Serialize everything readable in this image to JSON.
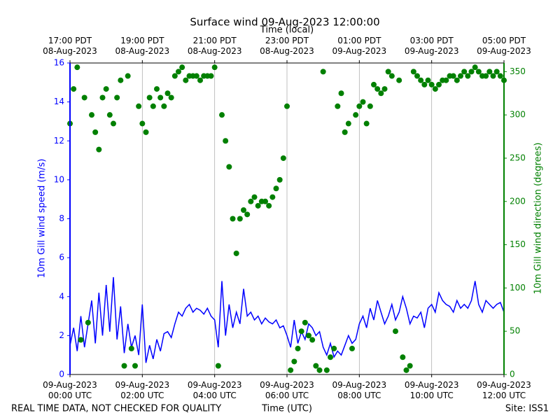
{
  "chart_data": {
    "type": "line",
    "title": "Surface wind 09-Aug-2023 12:00:00",
    "x_label": "Time (UTC)",
    "x2_label": "Time (local)",
    "y_label": "10m Gill wind speed (m/s)",
    "y2_label": "10m Gill wind direction (degrees)",
    "footer_left": "REAL TIME DATA, NOT CHECKED FOR QUALITY",
    "footer_right": "Site: ISS1",
    "x": [
      0,
      0.1,
      0.2,
      0.3,
      0.4,
      0.5,
      0.6,
      0.7,
      0.8,
      0.9,
      1,
      1.1,
      1.2,
      1.3,
      1.4,
      1.5,
      1.6,
      1.7,
      1.8,
      1.9,
      2,
      2.1,
      2.2,
      2.3,
      2.4,
      2.5,
      2.6,
      2.7,
      2.8,
      2.9,
      3,
      3.1,
      3.2,
      3.3,
      3.4,
      3.5,
      3.6,
      3.7,
      3.8,
      3.9,
      4,
      4.1,
      4.2,
      4.3,
      4.4,
      4.5,
      4.6,
      4.7,
      4.8,
      4.9,
      5,
      5.1,
      5.2,
      5.3,
      5.4,
      5.5,
      5.6,
      5.7,
      5.8,
      5.9,
      6,
      6.1,
      6.2,
      6.3,
      6.4,
      6.5,
      6.6,
      6.7,
      6.8,
      6.9,
      7,
      7.1,
      7.2,
      7.3,
      7.4,
      7.5,
      7.6,
      7.7,
      7.8,
      7.9,
      8,
      8.1,
      8.2,
      8.3,
      8.4,
      8.5,
      8.6,
      8.7,
      8.8,
      8.9,
      9,
      9.1,
      9.2,
      9.3,
      9.4,
      9.5,
      9.6,
      9.7,
      9.8,
      9.9,
      10,
      10.1,
      10.2,
      10.3,
      10.4,
      10.5,
      10.6,
      10.7,
      10.8,
      10.9,
      11,
      11.1,
      11.2,
      11.3,
      11.4,
      11.5,
      11.6,
      11.7,
      11.8,
      11.9,
      12
    ],
    "xlim": [
      0,
      12
    ],
    "xticks": [
      {
        "value": 0,
        "label": "09-Aug-2023 00:00 UTC"
      },
      {
        "value": 2,
        "label": "09-Aug-2023 02:00 UTC"
      },
      {
        "value": 4,
        "label": "09-Aug-2023 04:00 UTC"
      },
      {
        "value": 6,
        "label": "09-Aug-2023 06:00 UTC"
      },
      {
        "value": 8,
        "label": "09-Aug-2023 08:00 UTC"
      },
      {
        "value": 10,
        "label": "09-Aug-2023 10:00 UTC"
      },
      {
        "value": 12,
        "label": "09-Aug-2023 12:00 UTC"
      }
    ],
    "x2ticks": [
      {
        "value": 0,
        "label": "17:00 PDT 08-Aug-2023"
      },
      {
        "value": 2,
        "label": "19:00 PDT 08-Aug-2023"
      },
      {
        "value": 4,
        "label": "21:00 PDT 08-Aug-2023"
      },
      {
        "value": 6,
        "label": "23:00 PDT 08-Aug-2023"
      },
      {
        "value": 8,
        "label": "01:00 PDT 09-Aug-2023"
      },
      {
        "value": 10,
        "label": "03:00 PDT 09-Aug-2023"
      },
      {
        "value": 12,
        "label": "05:00 PDT 09-Aug-2023"
      }
    ],
    "ylim": [
      0,
      16
    ],
    "yticks": [
      0,
      2,
      4,
      6,
      8,
      10,
      12,
      14,
      16
    ],
    "y2lim": [
      0,
      360
    ],
    "y2ticks": [
      0,
      50,
      100,
      150,
      200,
      250,
      300,
      350
    ],
    "xgrid": true,
    "series": [
      {
        "name": "10m Gill wind speed",
        "type": "line",
        "color": "#0000ff",
        "values": [
          1.5,
          2.4,
          1.2,
          3.0,
          1.4,
          2.6,
          3.8,
          1.6,
          4.2,
          2.0,
          4.6,
          2.2,
          5.0,
          1.8,
          3.5,
          1.1,
          2.6,
          1.4,
          2.0,
          1.0,
          3.6,
          0.6,
          1.5,
          0.8,
          1.8,
          1.2,
          2.1,
          2.2,
          1.9,
          2.6,
          3.2,
          3.0,
          3.4,
          3.6,
          3.2,
          3.4,
          3.3,
          3.1,
          3.4,
          3.0,
          2.8,
          1.4,
          4.8,
          2.0,
          3.6,
          2.4,
          3.2,
          2.6,
          4.4,
          3.0,
          3.2,
          2.8,
          3.0,
          2.6,
          2.9,
          2.7,
          2.6,
          2.8,
          2.4,
          2.5,
          2.0,
          1.4,
          2.8,
          1.6,
          2.2,
          1.8,
          2.6,
          2.4,
          2.0,
          2.2,
          1.4,
          1.0,
          1.6,
          0.9,
          1.2,
          1.0,
          1.5,
          2.0,
          1.6,
          1.8,
          2.6,
          3.0,
          2.4,
          3.4,
          2.8,
          3.8,
          3.2,
          2.6,
          3.0,
          3.6,
          2.8,
          3.2,
          4.0,
          3.4,
          2.6,
          3.0,
          2.9,
          3.2,
          2.4,
          3.4,
          3.6,
          3.2,
          4.2,
          3.8,
          3.6,
          3.5,
          3.2,
          3.8,
          3.4,
          3.6,
          3.4,
          3.8,
          4.8,
          3.6,
          3.2,
          3.8,
          3.6,
          3.4,
          3.6,
          3.7,
          3.2
        ]
      },
      {
        "name": "10m Gill wind direction",
        "type": "scatter",
        "axis": "y2",
        "color": "#008000",
        "values": [
          290,
          330,
          355,
          40,
          320,
          60,
          300,
          280,
          260,
          320,
          330,
          300,
          290,
          320,
          340,
          10,
          345,
          30,
          10,
          310,
          290,
          280,
          320,
          310,
          330,
          320,
          310,
          325,
          320,
          345,
          350,
          355,
          340,
          345,
          345,
          345,
          340,
          345,
          345,
          345,
          355,
          10,
          300,
          270,
          240,
          180,
          140,
          180,
          190,
          185,
          200,
          205,
          195,
          200,
          200,
          195,
          205,
          215,
          225,
          250,
          310,
          5,
          15,
          30,
          50,
          60,
          45,
          40,
          10,
          5,
          350,
          5,
          20,
          30,
          310,
          325,
          280,
          290,
          30,
          300,
          310,
          315,
          290,
          310,
          335,
          330,
          325,
          330,
          350,
          345,
          50,
          340,
          20,
          5,
          10,
          350,
          345,
          340,
          335,
          340,
          335,
          330,
          335,
          340,
          340,
          345,
          345,
          340,
          345,
          350,
          345,
          350,
          355,
          350,
          345,
          345,
          350,
          345,
          350,
          345,
          340
        ]
      }
    ]
  }
}
